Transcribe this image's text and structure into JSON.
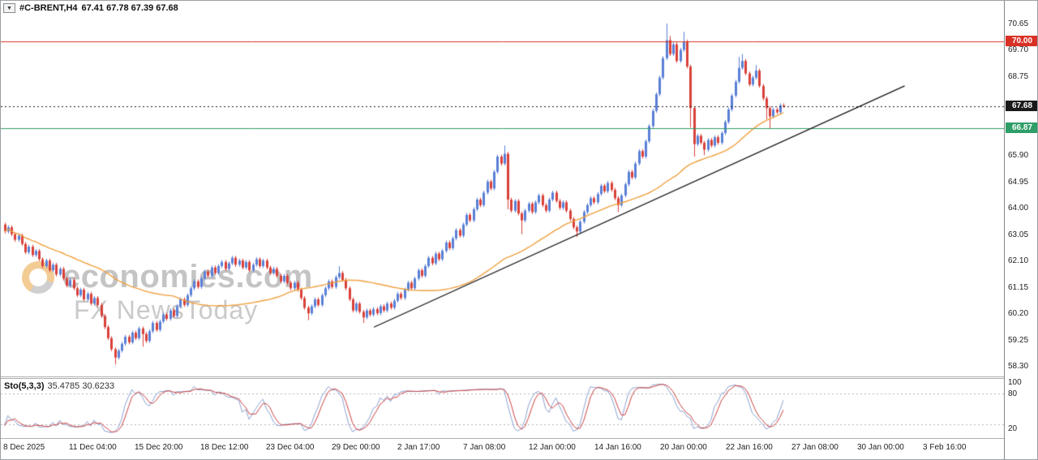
{
  "header": {
    "dropdown_glyph": "▼",
    "symbol": "#C-BRENT,H4",
    "ohlc": "67.41 67.78 67.39 67.68"
  },
  "watermark": {
    "line1": "economies.com",
    "line2": "FX NewsToday"
  },
  "colors": {
    "candle_up": "#5a7fd6",
    "candle_down": "#d9403a",
    "ma": "#efa03f",
    "trendline": "#111111",
    "sto_main": "#8aa0d0",
    "sto_signal": "#c94040",
    "sto_levels": "#b5b5b5",
    "line_red": "#d93025",
    "line_green": "#2f9e68",
    "line_current": "#1a1a1a"
  },
  "chart_data": {
    "type": "candlestick",
    "symbol": "#C-BRENT",
    "timeframe": "H4",
    "ohlc_current": {
      "open": 67.41,
      "high": 67.78,
      "low": 67.39,
      "close": 67.68
    },
    "price_axis_ticks": [
      70.65,
      69.7,
      68.75,
      65.9,
      64.95,
      64.0,
      63.05,
      62.1,
      61.15,
      60.2,
      59.25,
      58.3
    ],
    "price_lines": [
      {
        "label": "70.00",
        "value": 70.0,
        "color": "#d93025",
        "style": "solid"
      },
      {
        "label": "67.68",
        "value": 67.68,
        "color": "#1a1a1a",
        "style": "dotted"
      },
      {
        "label": "66.87",
        "value": 66.87,
        "color": "#2f9e68",
        "style": "solid"
      }
    ],
    "trendline": {
      "x1_frac": 0.372,
      "price1": 59.7,
      "x2_frac": 0.901,
      "price2": 68.4
    },
    "ma_period": 50,
    "first_open": 63.4,
    "wick_margin": 0.07,
    "closes": [
      63.15,
      63.3,
      63.05,
      62.85,
      63.0,
      62.7,
      62.4,
      62.6,
      62.3,
      62.45,
      62.15,
      61.9,
      62.1,
      61.75,
      61.95,
      61.6,
      61.8,
      61.45,
      61.2,
      61.4,
      61.1,
      60.85,
      61.05,
      60.7,
      60.9,
      60.55,
      60.75,
      60.5,
      60.1,
      59.7,
      59.3,
      58.9,
      58.6,
      58.85,
      59.1,
      59.35,
      59.15,
      59.5,
      59.3,
      59.65,
      59.45,
      59.2,
      59.55,
      59.85,
      59.6,
      59.9,
      60.15,
      60.0,
      60.3,
      60.1,
      60.45,
      60.7,
      60.5,
      60.85,
      61.1,
      61.35,
      61.15,
      61.45,
      61.7,
      61.55,
      61.85,
      61.65,
      61.9,
      62.05,
      61.8,
      62.0,
      62.2,
      61.95,
      62.1,
      61.85,
      62.05,
      61.75,
      61.95,
      62.15,
      61.9,
      62.1,
      61.85,
      61.65,
      61.8,
      61.55,
      61.35,
      61.55,
      61.3,
      61.1,
      61.3,
      61.05,
      60.75,
      60.4,
      60.2,
      60.45,
      60.7,
      60.5,
      60.85,
      61.1,
      61.35,
      61.15,
      61.5,
      61.65,
      61.4,
      61.1,
      60.7,
      60.3,
      60.55,
      60.25,
      60.05,
      60.3,
      60.15,
      60.35,
      60.2,
      60.45,
      60.3,
      60.55,
      60.4,
      60.65,
      60.9,
      60.75,
      61.05,
      61.3,
      61.1,
      61.45,
      61.75,
      61.55,
      61.9,
      62.2,
      62.0,
      62.35,
      62.15,
      62.45,
      62.75,
      62.55,
      62.9,
      63.2,
      63.0,
      63.4,
      63.75,
      63.55,
      63.95,
      64.3,
      64.1,
      64.55,
      64.95,
      64.7,
      65.3,
      65.85,
      65.6,
      65.95,
      64.3,
      63.9,
      64.25,
      63.8,
      63.55,
      63.9,
      64.15,
      63.85,
      64.2,
      64.45,
      64.1,
      63.9,
      64.3,
      64.55,
      64.25,
      64.0,
      64.2,
      63.9,
      63.6,
      63.3,
      63.15,
      63.5,
      63.85,
      64.1,
      64.35,
      64.2,
      64.5,
      64.8,
      64.6,
      64.9,
      64.65,
      64.35,
      64.1,
      64.45,
      64.85,
      65.3,
      65.1,
      65.6,
      66.05,
      65.85,
      66.4,
      66.95,
      67.5,
      68.1,
      68.7,
      69.4,
      70.05,
      69.55,
      69.9,
      69.3,
      69.7,
      70.0,
      69.1,
      67.6,
      66.3,
      66.6,
      66.35,
      66.1,
      66.45,
      66.25,
      66.55,
      66.35,
      66.7,
      67.1,
      67.55,
      68.05,
      68.55,
      69.05,
      69.3,
      68.85,
      68.45,
      68.7,
      68.95,
      68.4,
      67.95,
      67.6,
      67.3,
      67.55,
      67.45,
      67.7,
      67.68
    ],
    "wick_overrides": [
      {
        "i": 32,
        "low": 58.35
      },
      {
        "i": 40,
        "low": 59.0
      },
      {
        "i": 88,
        "low": 59.95
      },
      {
        "i": 97,
        "high": 61.9
      },
      {
        "i": 104,
        "low": 59.85
      },
      {
        "i": 145,
        "high": 66.25
      },
      {
        "i": 146,
        "low": 63.95
      },
      {
        "i": 150,
        "low": 63.05
      },
      {
        "i": 166,
        "low": 62.95
      },
      {
        "i": 178,
        "low": 63.85
      },
      {
        "i": 192,
        "high": 70.65
      },
      {
        "i": 193,
        "high": 70.2
      },
      {
        "i": 197,
        "high": 70.35
      },
      {
        "i": 199,
        "low": 66.9
      },
      {
        "i": 200,
        "low": 65.85
      },
      {
        "i": 203,
        "low": 65.9
      },
      {
        "i": 213,
        "high": 69.45
      },
      {
        "i": 214,
        "high": 69.55
      },
      {
        "i": 218,
        "high": 69.15
      },
      {
        "i": 221,
        "low": 67.2
      },
      {
        "i": 222,
        "low": 66.85
      }
    ],
    "indicator": {
      "name": "Sto(5,3,3)",
      "values": "35.4785 30.6233",
      "k": 5,
      "d": 3,
      "slowing": 3,
      "levels": [
        20,
        80
      ],
      "axis_ticks": [
        100,
        80,
        20
      ]
    },
    "time_labels": [
      "8 Dec 2025",
      "11 Dec 04:00",
      "15 Dec 20:00",
      "18 Dec 12:00",
      "23 Dec 04:00",
      "29 Dec 00:00",
      "2 Jan 17:00",
      "7 Jan 08:00",
      "12 Jan 00:00",
      "14 Jan 16:00",
      "20 Jan 00:00",
      "22 Jan 16:00",
      "27 Jan 08:00",
      "30 Jan 00:00",
      "3 Feb 16:00"
    ]
  }
}
